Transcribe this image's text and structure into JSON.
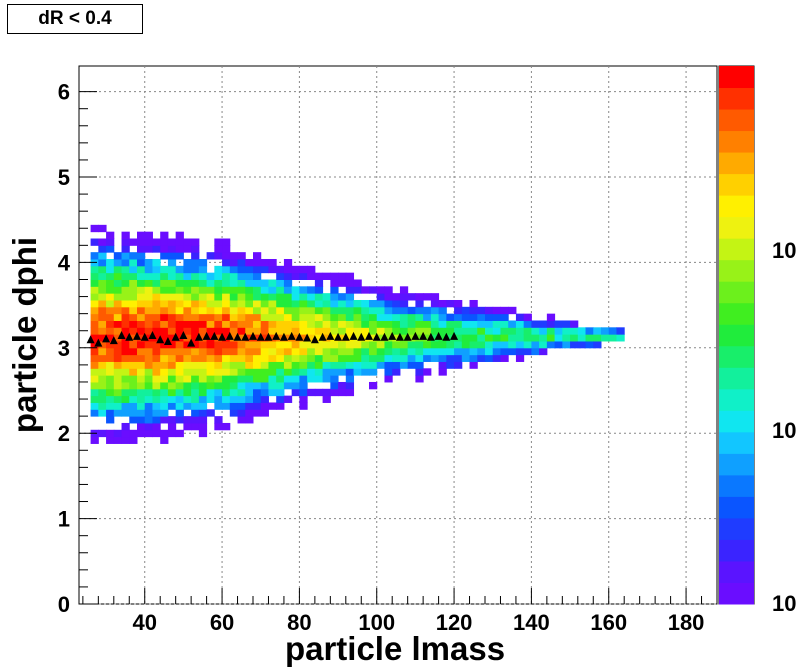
{
  "title": "dR < 0.4",
  "chart_data": {
    "type": "heatmap",
    "xlabel": "particle lmass",
    "ylabel": "particle dphi",
    "xlim": [
      23,
      188
    ],
    "ylim": [
      0,
      6.3
    ],
    "x_ticks": [
      "40",
      "60",
      "80",
      "100",
      "120",
      "140",
      "160",
      "180"
    ],
    "y_ticks": [
      "0",
      "1",
      "2",
      "3",
      "4",
      "5",
      "6"
    ],
    "z_scale": "log",
    "z_tick_labels": [
      "10",
      "10",
      "10"
    ],
    "grid": true,
    "bin_width_x": 2,
    "bin_width_y": 0.08,
    "density_model": {
      "description": "2D histogram: counts peak near x=40-50, y=3.1; y-spread narrows as x increases up to ~163",
      "peak_x": 44,
      "peak_y": 3.1,
      "x_min": 26,
      "x_max": 163,
      "y_half_width_at_x": [
        [
          26,
          1.15
        ],
        [
          60,
          0.95
        ],
        [
          100,
          0.5
        ],
        [
          140,
          0.22
        ],
        [
          163,
          0.06
        ]
      ]
    },
    "profile_series": {
      "name": "",
      "marker": "triangle",
      "x": [
        26,
        28,
        30,
        32,
        34,
        36,
        38,
        40,
        42,
        44,
        46,
        48,
        50,
        52,
        54,
        56,
        58,
        60,
        62,
        64,
        66,
        68,
        70,
        72,
        74,
        76,
        78,
        80,
        82,
        84,
        86,
        88,
        90,
        92,
        94,
        96,
        98,
        100,
        102,
        104,
        106,
        108,
        110,
        112,
        114,
        116,
        118,
        120
      ],
      "y": [
        3.1,
        3.06,
        3.11,
        3.09,
        3.15,
        3.13,
        3.14,
        3.13,
        3.15,
        3.1,
        3.08,
        3.13,
        3.15,
        3.06,
        3.13,
        3.14,
        3.14,
        3.13,
        3.14,
        3.13,
        3.13,
        3.14,
        3.13,
        3.13,
        3.14,
        3.13,
        3.14,
        3.13,
        3.12,
        3.1,
        3.13,
        3.14,
        3.13,
        3.13,
        3.14,
        3.13,
        3.14,
        3.13,
        3.13,
        3.14,
        3.13,
        3.13,
        3.14,
        3.14,
        3.13,
        3.14,
        3.13,
        3.14
      ]
    }
  }
}
